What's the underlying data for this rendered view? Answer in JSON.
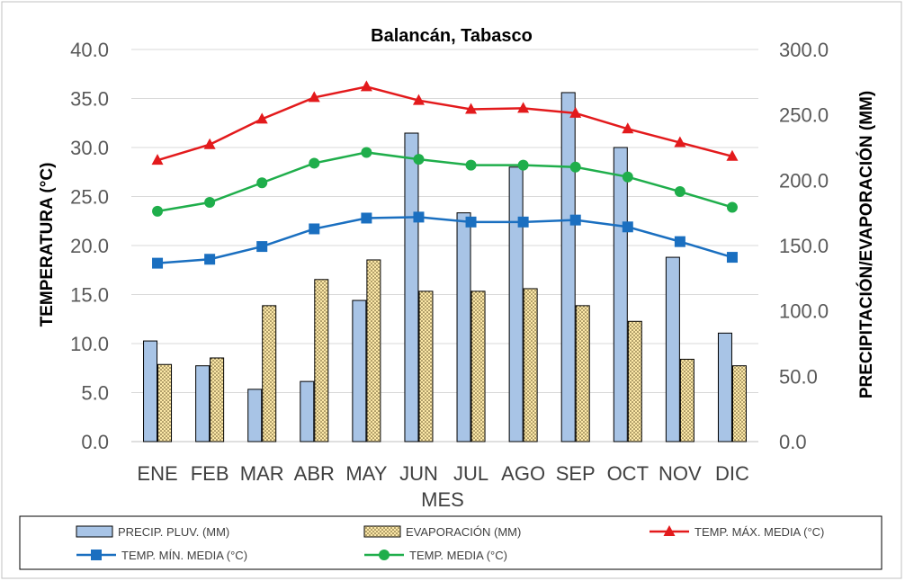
{
  "chart_data": {
    "type": "bar",
    "title": "Balancán, Tabasco",
    "xlabel": "MES",
    "ylabel": "TEMPERATURA (°C)",
    "ylabel_right": "PRECIPITACIÓN/EVAPORACIÓN (MM)",
    "ylim": [
      0,
      40
    ],
    "ylim_right": [
      0,
      300
    ],
    "y_ticks": [
      "0.0",
      "5.0",
      "10.0",
      "15.0",
      "20.0",
      "25.0",
      "30.0",
      "35.0",
      "40.0"
    ],
    "y_ticks_right": [
      "0.0",
      "50.0",
      "100.0",
      "150.0",
      "200.0",
      "250.0",
      "300.0"
    ],
    "categories": [
      "ENE",
      "FEB",
      "MAR",
      "ABR",
      "MAY",
      "JUN",
      "JUL",
      "AGO",
      "SEP",
      "OCT",
      "NOV",
      "DIC"
    ],
    "grid": true,
    "legend_position": "bottom",
    "series": [
      {
        "name": "PRECIP. PLUV. (MM)",
        "type": "bar",
        "axis": "right",
        "color": "#a8c4e6",
        "values": [
          77,
          58,
          40,
          46,
          108,
          236,
          175,
          210,
          267,
          225,
          141,
          83
        ]
      },
      {
        "name": "EVAPORACIÓN (MM)",
        "type": "bar",
        "axis": "right",
        "color": "#fce8a8",
        "values": [
          59,
          64,
          104,
          124,
          139,
          115,
          115,
          117,
          104,
          92,
          63,
          58
        ]
      },
      {
        "name": "TEMP. MÁX. MEDIA (°C)",
        "type": "line",
        "axis": "left",
        "color": "#e31a1c",
        "marker": "triangle",
        "values": [
          28.7,
          30.3,
          32.9,
          35.1,
          36.2,
          34.8,
          33.9,
          34.0,
          33.5,
          31.9,
          30.5,
          29.1
        ]
      },
      {
        "name": "TEMP. MÍN. MEDIA (°C)",
        "type": "line",
        "axis": "left",
        "color": "#1a6fc0",
        "marker": "square",
        "values": [
          18.2,
          18.6,
          19.9,
          21.7,
          22.8,
          22.9,
          22.4,
          22.4,
          22.6,
          21.9,
          20.4,
          18.8
        ]
      },
      {
        "name": "TEMP. MEDIA (°C)",
        "type": "line",
        "axis": "left",
        "color": "#1fae4b",
        "marker": "circle",
        "values": [
          23.5,
          24.4,
          26.4,
          28.4,
          29.5,
          28.8,
          28.2,
          28.2,
          28.0,
          27.0,
          25.5,
          23.9
        ]
      }
    ]
  }
}
